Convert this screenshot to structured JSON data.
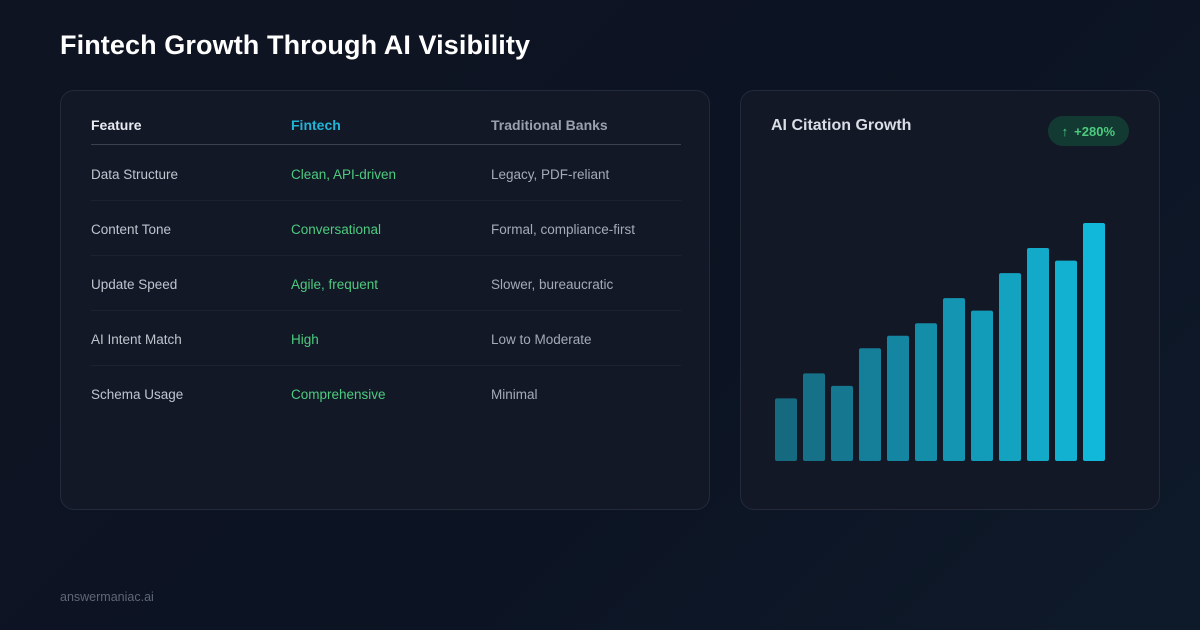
{
  "title": "Fintech Growth Through AI Visibility",
  "table": {
    "headers": [
      "Feature",
      "Fintech",
      "Traditional Banks"
    ],
    "rows": [
      [
        "Data Structure",
        "Clean, API-driven",
        "Legacy, PDF-reliant"
      ],
      [
        "Content Tone",
        "Conversational",
        "Formal, compliance-first"
      ],
      [
        "Update Speed",
        "Agile, frequent",
        "Slower, bureaucratic"
      ],
      [
        "AI Intent Match",
        "High",
        "Low to Moderate"
      ],
      [
        "Schema Usage",
        "Comprehensive",
        "Minimal"
      ]
    ]
  },
  "chart_title": "AI Citation Growth",
  "growth_badge": "+280%",
  "footer": "answermaniac.ai",
  "colors": {
    "accent": "#22b3d6",
    "positive": "#4ccb7e",
    "bar_start": "#166a80",
    "bar_end": "#12b8da"
  },
  "chart_data": {
    "type": "bar",
    "title": "AI Citation Growth",
    "values": [
      25,
      35,
      30,
      45,
      50,
      55,
      65,
      60,
      75,
      85,
      80,
      95
    ]
  }
}
